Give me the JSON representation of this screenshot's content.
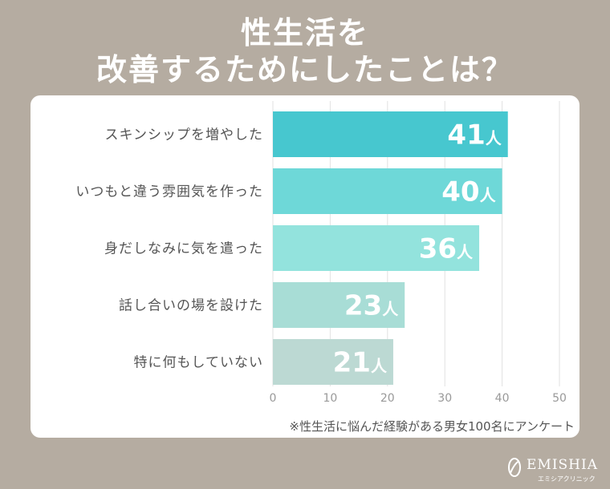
{
  "title": {
    "line1": "性生活を",
    "line2": "改善するためにしたことは？"
  },
  "note": "※性生活に悩んだ経験がある男女100名にアンケート",
  "brand": {
    "name": "EMISHIA",
    "sub": "エミシアクリニック"
  },
  "colors": [
    "#47c7cf",
    "#6ed8d8",
    "#93e3dd",
    "#a8ddd6",
    "#bcd9d3"
  ],
  "chart_data": {
    "type": "bar",
    "orientation": "horizontal",
    "categories": [
      "スキンシップを増やした",
      "いつもと違う雰囲気を作った",
      "身だしなみに気を遣った",
      "話し合いの場を設けた",
      "特に何もしていない"
    ],
    "values": [
      41,
      40,
      36,
      23,
      21
    ],
    "unit": "人",
    "xlim": [
      0,
      50
    ],
    "xticks": [
      0,
      10,
      20,
      30,
      40,
      50
    ],
    "grid": true
  }
}
